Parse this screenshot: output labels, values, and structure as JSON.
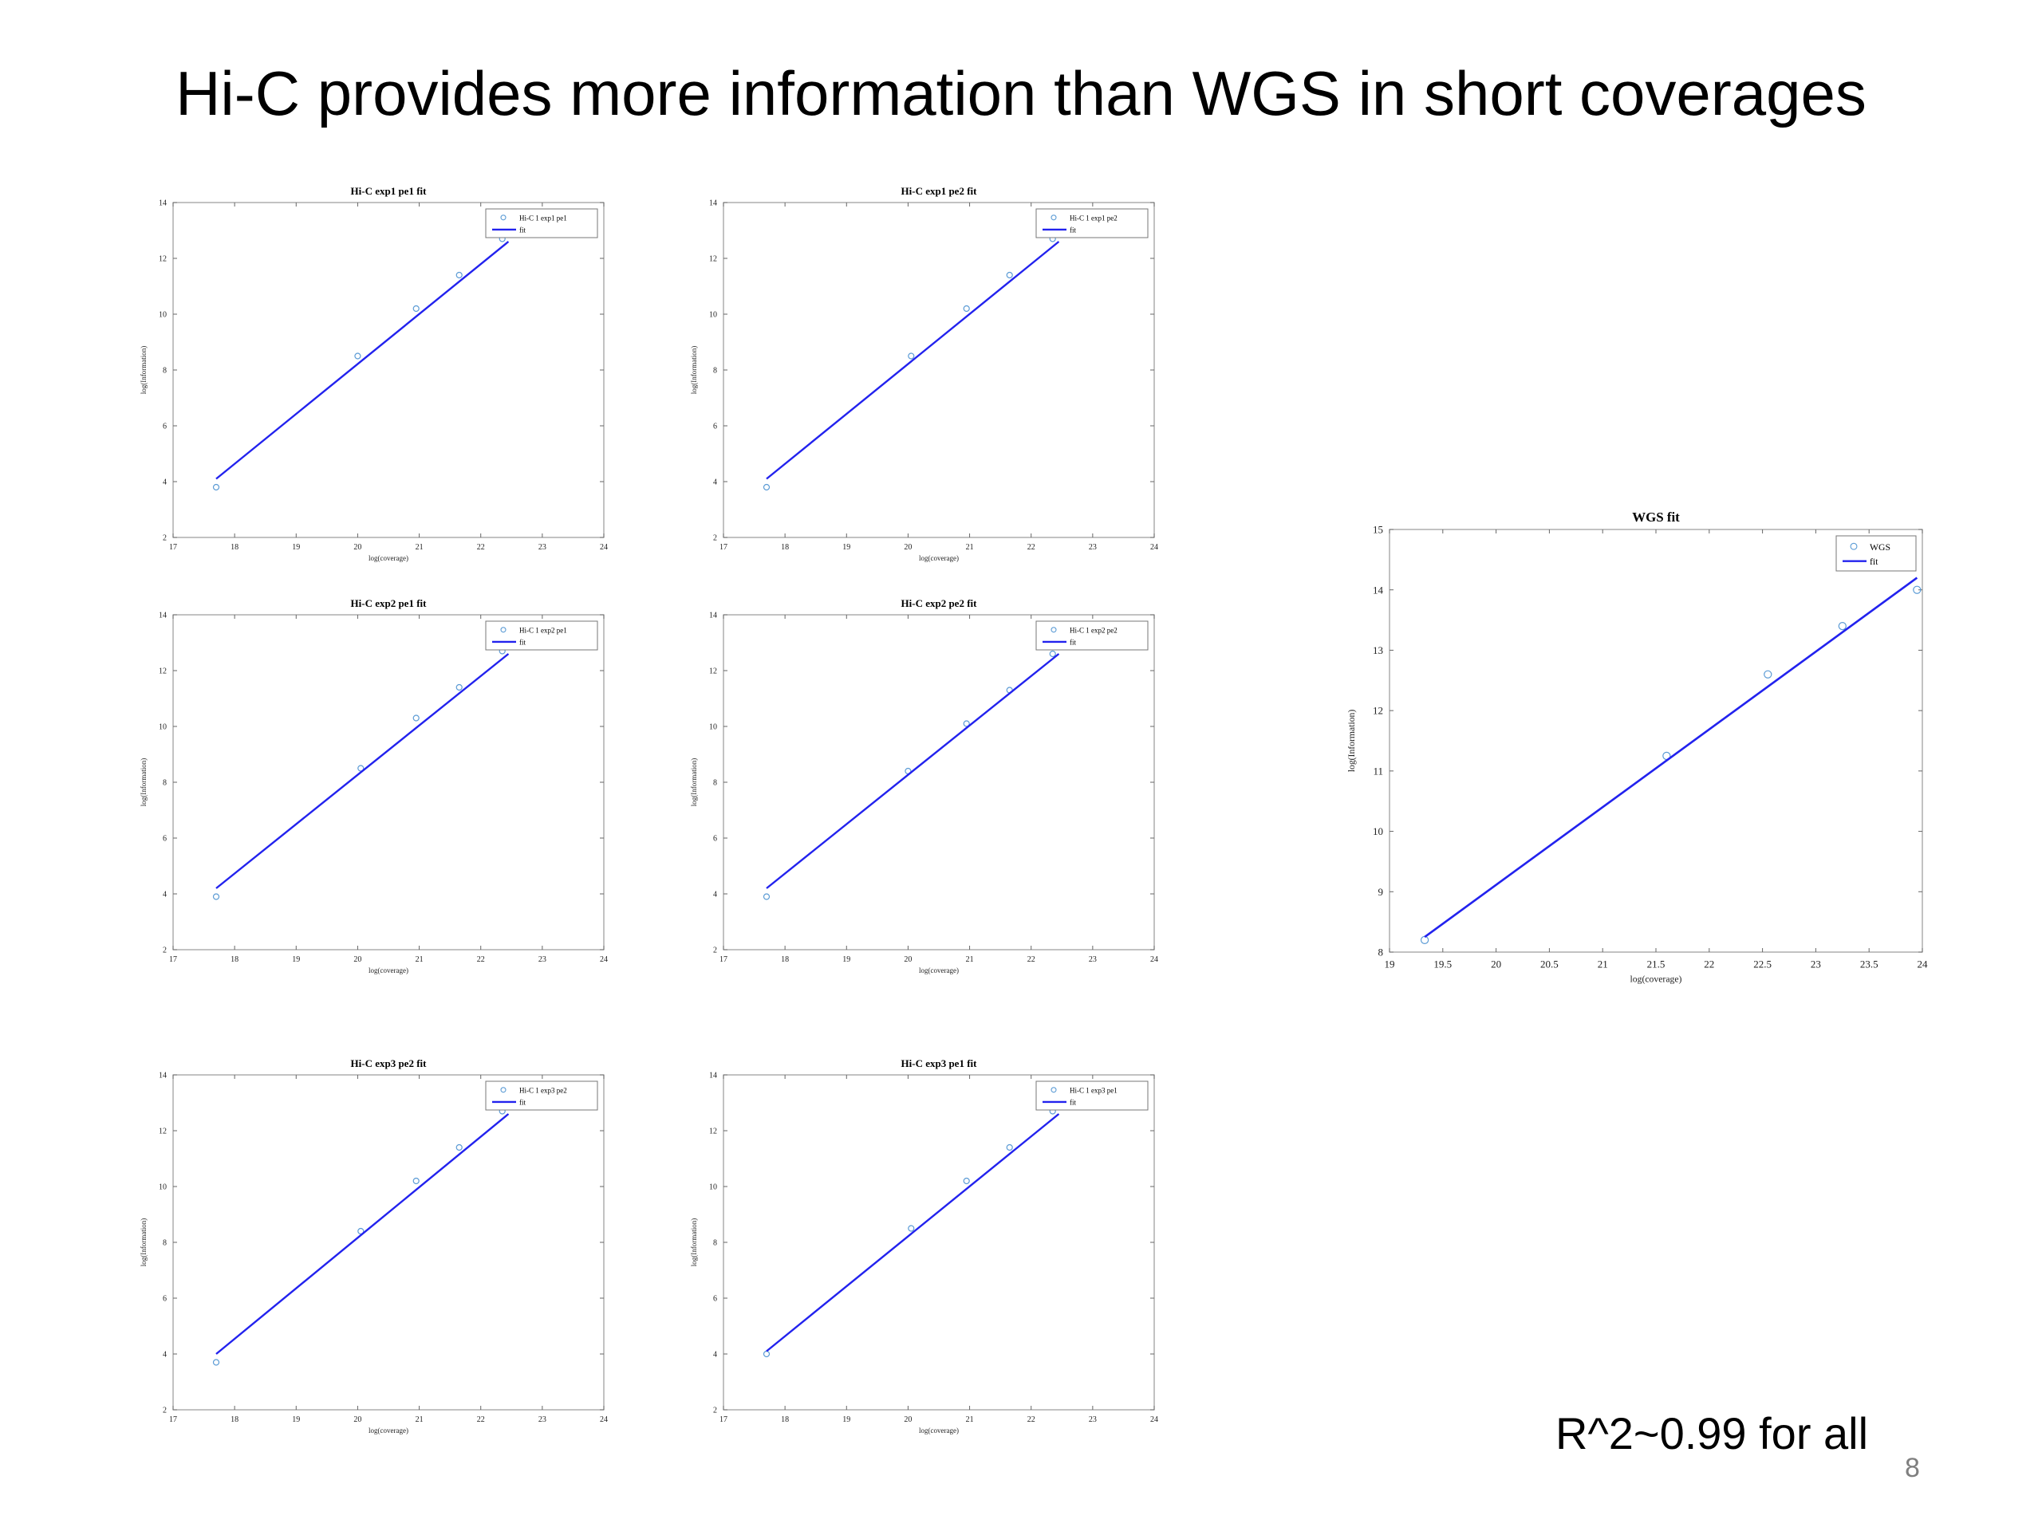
{
  "slide": {
    "title": "Hi-C provides more information than WGS in short coverages",
    "footnote": "R^2~0.99 for all",
    "page_number": "8"
  },
  "colors": {
    "marker": "#5b9bd5",
    "fit": "#2222ee"
  },
  "chart_data": [
    {
      "type": "scatter",
      "title": "Hi-C exp1 pe1 fit",
      "xlabel": "log(coverage)",
      "ylabel": "log(Information)",
      "xlim": [
        17,
        24
      ],
      "ylim": [
        2,
        14
      ],
      "xticks": [
        17,
        18,
        19,
        20,
        21,
        22,
        23,
        24
      ],
      "yticks": [
        2,
        4,
        6,
        8,
        10,
        12,
        14
      ],
      "legend_position": "top-right",
      "series": [
        {
          "name": "Hi-C 1 exp1 pe1",
          "kind": "markers",
          "points": [
            [
              17.7,
              3.8
            ],
            [
              20.0,
              8.5
            ],
            [
              20.95,
              10.2
            ],
            [
              21.65,
              11.4
            ],
            [
              22.35,
              12.7
            ]
          ]
        },
        {
          "name": "fit",
          "kind": "line",
          "points": [
            [
              17.7,
              4.1
            ],
            [
              22.45,
              12.6
            ]
          ]
        }
      ]
    },
    {
      "type": "scatter",
      "title": "Hi-C exp1 pe2 fit",
      "xlabel": "log(coverage)",
      "ylabel": "log(Information)",
      "xlim": [
        17,
        24
      ],
      "ylim": [
        2,
        14
      ],
      "xticks": [
        17,
        18,
        19,
        20,
        21,
        22,
        23,
        24
      ],
      "yticks": [
        2,
        4,
        6,
        8,
        10,
        12,
        14
      ],
      "legend_position": "top-right",
      "series": [
        {
          "name": "Hi-C 1 exp1 pe2",
          "kind": "markers",
          "points": [
            [
              17.7,
              3.8
            ],
            [
              20.05,
              8.5
            ],
            [
              20.95,
              10.2
            ],
            [
              21.65,
              11.4
            ],
            [
              22.35,
              12.7
            ]
          ]
        },
        {
          "name": "fit",
          "kind": "line",
          "points": [
            [
              17.7,
              4.1
            ],
            [
              22.45,
              12.6
            ]
          ]
        }
      ]
    },
    {
      "type": "scatter",
      "title": "Hi-C exp2 pe1 fit",
      "xlabel": "log(coverage)",
      "ylabel": "log(Information)",
      "xlim": [
        17,
        24
      ],
      "ylim": [
        2,
        14
      ],
      "xticks": [
        17,
        18,
        19,
        20,
        21,
        22,
        23,
        24
      ],
      "yticks": [
        2,
        4,
        6,
        8,
        10,
        12,
        14
      ],
      "legend_position": "top-right",
      "series": [
        {
          "name": "Hi-C 1 exp2 pe1",
          "kind": "markers",
          "points": [
            [
              17.7,
              3.9
            ],
            [
              20.05,
              8.5
            ],
            [
              20.95,
              10.3
            ],
            [
              21.65,
              11.4
            ],
            [
              22.35,
              12.7
            ]
          ]
        },
        {
          "name": "fit",
          "kind": "line",
          "points": [
            [
              17.7,
              4.2
            ],
            [
              22.45,
              12.6
            ]
          ]
        }
      ]
    },
    {
      "type": "scatter",
      "title": "Hi-C exp2 pe2 fit",
      "xlabel": "log(coverage)",
      "ylabel": "log(Information)",
      "xlim": [
        17,
        24
      ],
      "ylim": [
        2,
        14
      ],
      "xticks": [
        17,
        18,
        19,
        20,
        21,
        22,
        23,
        24
      ],
      "yticks": [
        2,
        4,
        6,
        8,
        10,
        12,
        14
      ],
      "legend_position": "top-right",
      "series": [
        {
          "name": "Hi-C 1 exp2 pe2",
          "kind": "markers",
          "points": [
            [
              17.7,
              3.9
            ],
            [
              20.0,
              8.4
            ],
            [
              20.95,
              10.1
            ],
            [
              21.65,
              11.3
            ],
            [
              22.35,
              12.6
            ]
          ]
        },
        {
          "name": "fit",
          "kind": "line",
          "points": [
            [
              17.7,
              4.2
            ],
            [
              22.45,
              12.6
            ]
          ]
        }
      ]
    },
    {
      "type": "scatter",
      "title": "Hi-C exp3 pe2 fit",
      "xlabel": "log(coverage)",
      "ylabel": "log(Information)",
      "xlim": [
        17,
        24
      ],
      "ylim": [
        2,
        14
      ],
      "xticks": [
        17,
        18,
        19,
        20,
        21,
        22,
        23,
        24
      ],
      "yticks": [
        2,
        4,
        6,
        8,
        10,
        12,
        14
      ],
      "legend_position": "top-right",
      "series": [
        {
          "name": "Hi-C 1 exp3 pe2",
          "kind": "markers",
          "points": [
            [
              17.7,
              3.7
            ],
            [
              20.05,
              8.4
            ],
            [
              20.95,
              10.2
            ],
            [
              21.65,
              11.4
            ],
            [
              22.35,
              12.7
            ]
          ]
        },
        {
          "name": "fit",
          "kind": "line",
          "points": [
            [
              17.7,
              4.0
            ],
            [
              22.45,
              12.6
            ]
          ]
        }
      ]
    },
    {
      "type": "scatter",
      "title": "Hi-C exp3 pe1 fit",
      "xlabel": "log(coverage)",
      "ylabel": "log(Information)",
      "xlim": [
        17,
        24
      ],
      "ylim": [
        2,
        14
      ],
      "xticks": [
        17,
        18,
        19,
        20,
        21,
        22,
        23,
        24
      ],
      "yticks": [
        2,
        4,
        6,
        8,
        10,
        12,
        14
      ],
      "legend_position": "top-right",
      "series": [
        {
          "name": "Hi-C 1 exp3 pe1",
          "kind": "markers",
          "points": [
            [
              17.7,
              4.0
            ],
            [
              20.05,
              8.5
            ],
            [
              20.95,
              10.2
            ],
            [
              21.65,
              11.4
            ],
            [
              22.35,
              12.7
            ]
          ]
        },
        {
          "name": "fit",
          "kind": "line",
          "points": [
            [
              17.7,
              4.1
            ],
            [
              22.45,
              12.6
            ]
          ]
        }
      ]
    },
    {
      "type": "scatter",
      "title": "WGS fit",
      "xlabel": "log(coverage)",
      "ylabel": "log(Information)",
      "xlim": [
        19,
        24
      ],
      "ylim": [
        8,
        15
      ],
      "xticks": [
        19,
        19.5,
        20,
        20.5,
        21,
        21.5,
        22,
        22.5,
        23,
        23.5,
        24
      ],
      "yticks": [
        8,
        9,
        10,
        11,
        12,
        13,
        14,
        15
      ],
      "legend_position": "top-right",
      "series": [
        {
          "name": "WGS",
          "kind": "markers",
          "points": [
            [
              19.33,
              8.2
            ],
            [
              21.6,
              11.25
            ],
            [
              22.55,
              12.6
            ],
            [
              23.25,
              13.4
            ],
            [
              23.95,
              14.0
            ]
          ]
        },
        {
          "name": "fit",
          "kind": "line",
          "points": [
            [
              19.33,
              8.25
            ],
            [
              23.95,
              14.2
            ]
          ]
        }
      ]
    }
  ]
}
